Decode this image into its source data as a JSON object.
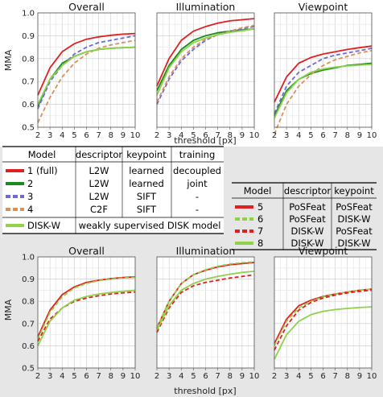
{
  "top_chart_group": {
    "ylabel": "MMA",
    "xlabel": "threshold [px]"
  },
  "bottom_chart_group": {
    "ylabel": "MMA",
    "xlabel": "threshold [px]"
  },
  "left_table": {
    "headers": [
      "Model",
      "descriptor",
      "keypoint",
      "training"
    ],
    "rows": [
      {
        "model": "1 (full)",
        "descriptor": "L2W",
        "keypoint": "learned",
        "training": "decoupled",
        "color": "#e02020",
        "dash": "solid"
      },
      {
        "model": "2",
        "descriptor": "L2W",
        "keypoint": "learned",
        "training": "joint",
        "color": "#1a8a1a",
        "dash": "solid"
      },
      {
        "model": "3",
        "descriptor": "L2W",
        "keypoint": "SIFT",
        "training": "-",
        "color": "#6a6ad8",
        "dash": "dashed"
      },
      {
        "model": "4",
        "descriptor": "C2F",
        "keypoint": "SIFT",
        "training": "-",
        "color": "#d9915a",
        "dash": "dashed"
      }
    ],
    "disk_row": {
      "model": "DISK-W",
      "description": "weakly supervised DISK model",
      "color": "#8fd24a",
      "dash": "solid"
    }
  },
  "right_table": {
    "headers": [
      "Model",
      "descriptor",
      "keypoint"
    ],
    "rows": [
      {
        "model": "5",
        "descriptor": "PoSFeat",
        "keypoint": "PoSFeat",
        "color": "#e02020",
        "dash": "solid"
      },
      {
        "model": "6",
        "descriptor": "PoSFeat",
        "keypoint": "DISK-W",
        "color": "#8fd24a",
        "dash": "dashed"
      },
      {
        "model": "7",
        "descriptor": "DISK-W",
        "keypoint": "PoSFeat",
        "color": "#e02020",
        "dash": "dashed"
      },
      {
        "model": "8",
        "descriptor": "DISK-W",
        "keypoint": "DISK-W",
        "color": "#8fd24a",
        "dash": "solid"
      }
    ]
  },
  "chart_data": [
    {
      "type": "line",
      "title": "Overall",
      "xlabel": "threshold [px]",
      "ylabel": "MMA",
      "x": [
        2,
        3,
        4,
        5,
        6,
        7,
        8,
        9,
        10
      ],
      "xlim": [
        2,
        10
      ],
      "ylim": [
        0.5,
        1.0
      ],
      "grid": true,
      "yticks": [
        "0.5",
        "0.6",
        "0.7",
        "0.8",
        "0.9",
        "1.0"
      ],
      "series": [
        {
          "name": "1 (full)",
          "color": "#e02020",
          "dash": "solid",
          "values": [
            0.64,
            0.76,
            0.83,
            0.865,
            0.885,
            0.895,
            0.902,
            0.907,
            0.91
          ]
        },
        {
          "name": "2",
          "color": "#1a8a1a",
          "dash": "solid",
          "values": [
            0.59,
            0.71,
            0.78,
            0.81,
            0.83,
            0.84,
            0.845,
            0.848,
            0.85
          ]
        },
        {
          "name": "3",
          "color": "#6a6ad8",
          "dash": "dashed",
          "values": [
            0.58,
            0.7,
            0.77,
            0.82,
            0.85,
            0.87,
            0.88,
            0.89,
            0.9
          ]
        },
        {
          "name": "4",
          "color": "#d9915a",
          "dash": "dashed",
          "values": [
            0.52,
            0.63,
            0.72,
            0.78,
            0.82,
            0.845,
            0.86,
            0.87,
            0.88
          ]
        },
        {
          "name": "DISK-W",
          "color": "#8fd24a",
          "dash": "solid",
          "values": [
            0.6,
            0.71,
            0.77,
            0.81,
            0.83,
            0.84,
            0.845,
            0.848,
            0.85
          ]
        }
      ]
    },
    {
      "type": "line",
      "title": "Illumination",
      "xlabel": "threshold [px]",
      "ylabel": "",
      "x": [
        2,
        3,
        4,
        5,
        6,
        7,
        8,
        9,
        10
      ],
      "xlim": [
        2,
        10
      ],
      "ylim": [
        0.5,
        1.0
      ],
      "grid": true,
      "yticks": [],
      "series": [
        {
          "name": "1 (full)",
          "color": "#e02020",
          "dash": "solid",
          "values": [
            0.68,
            0.8,
            0.88,
            0.92,
            0.94,
            0.955,
            0.965,
            0.97,
            0.975
          ]
        },
        {
          "name": "2",
          "color": "#1a8a1a",
          "dash": "solid",
          "values": [
            0.66,
            0.77,
            0.84,
            0.88,
            0.9,
            0.913,
            0.92,
            0.925,
            0.93
          ]
        },
        {
          "name": "3",
          "color": "#6a6ad8",
          "dash": "dashed",
          "values": [
            0.6,
            0.71,
            0.79,
            0.84,
            0.88,
            0.905,
            0.92,
            0.93,
            0.94
          ]
        },
        {
          "name": "4",
          "color": "#d9915a",
          "dash": "dashed",
          "values": [
            0.61,
            0.72,
            0.8,
            0.85,
            0.885,
            0.905,
            0.92,
            0.935,
            0.945
          ]
        },
        {
          "name": "DISK-W",
          "color": "#8fd24a",
          "dash": "solid",
          "values": [
            0.64,
            0.76,
            0.83,
            0.87,
            0.89,
            0.905,
            0.915,
            0.922,
            0.93
          ]
        }
      ]
    },
    {
      "type": "line",
      "title": "Viewpoint",
      "xlabel": "threshold [px]",
      "ylabel": "",
      "x": [
        2,
        3,
        4,
        5,
        6,
        7,
        8,
        9,
        10
      ],
      "xlim": [
        2,
        10
      ],
      "ylim": [
        0.5,
        1.0
      ],
      "grid": true,
      "yticks": [],
      "series": [
        {
          "name": "1 (full)",
          "color": "#e02020",
          "dash": "solid",
          "values": [
            0.61,
            0.72,
            0.78,
            0.805,
            0.82,
            0.83,
            0.84,
            0.848,
            0.855
          ]
        },
        {
          "name": "2",
          "color": "#1a8a1a",
          "dash": "solid",
          "values": [
            0.55,
            0.66,
            0.71,
            0.735,
            0.75,
            0.76,
            0.77,
            0.775,
            0.78
          ]
        },
        {
          "name": "3",
          "color": "#6a6ad8",
          "dash": "dashed",
          "values": [
            0.56,
            0.68,
            0.74,
            0.77,
            0.8,
            0.815,
            0.825,
            0.835,
            0.845
          ]
        },
        {
          "name": "4",
          "color": "#d9915a",
          "dash": "dashed",
          "values": [
            0.47,
            0.6,
            0.68,
            0.73,
            0.77,
            0.795,
            0.81,
            0.825,
            0.835
          ]
        },
        {
          "name": "DISK-W",
          "color": "#8fd24a",
          "dash": "solid",
          "values": [
            0.54,
            0.65,
            0.71,
            0.74,
            0.755,
            0.763,
            0.768,
            0.772,
            0.775
          ]
        }
      ]
    },
    {
      "type": "line",
      "title": "Overall",
      "xlabel": "threshold [px]",
      "ylabel": "MMA",
      "x": [
        2,
        3,
        4,
        5,
        6,
        7,
        8,
        9,
        10
      ],
      "xlim": [
        2,
        10
      ],
      "ylim": [
        0.5,
        1.0
      ],
      "grid": true,
      "yticks": [
        "0.5",
        "0.6",
        "0.7",
        "0.8",
        "0.9",
        "1.0"
      ],
      "series": [
        {
          "name": "5",
          "color": "#e02020",
          "dash": "solid",
          "values": [
            0.64,
            0.76,
            0.83,
            0.865,
            0.885,
            0.895,
            0.902,
            0.907,
            0.91
          ]
        },
        {
          "name": "6",
          "color": "#8fd24a",
          "dash": "dashed",
          "values": [
            0.63,
            0.75,
            0.82,
            0.86,
            0.88,
            0.893,
            0.9,
            0.905,
            0.908
          ]
        },
        {
          "name": "7",
          "color": "#e02020",
          "dash": "dashed",
          "values": [
            0.62,
            0.72,
            0.77,
            0.8,
            0.815,
            0.825,
            0.833,
            0.838,
            0.842
          ]
        },
        {
          "name": "8",
          "color": "#8fd24a",
          "dash": "solid",
          "values": [
            0.6,
            0.71,
            0.77,
            0.805,
            0.822,
            0.833,
            0.84,
            0.845,
            0.85
          ]
        }
      ]
    },
    {
      "type": "line",
      "title": "Illumination",
      "xlabel": "threshold [px]",
      "ylabel": "",
      "x": [
        2,
        3,
        4,
        5,
        6,
        7,
        8,
        9,
        10
      ],
      "xlim": [
        2,
        10
      ],
      "ylim": [
        0.5,
        1.0
      ],
      "grid": true,
      "yticks": [],
      "series": [
        {
          "name": "5",
          "color": "#e02020",
          "dash": "solid",
          "values": [
            0.68,
            0.8,
            0.88,
            0.92,
            0.94,
            0.955,
            0.965,
            0.97,
            0.975
          ]
        },
        {
          "name": "6",
          "color": "#8fd24a",
          "dash": "dashed",
          "values": [
            0.68,
            0.8,
            0.88,
            0.92,
            0.942,
            0.958,
            0.968,
            0.974,
            0.978
          ]
        },
        {
          "name": "7",
          "color": "#e02020",
          "dash": "dashed",
          "values": [
            0.66,
            0.77,
            0.84,
            0.87,
            0.885,
            0.895,
            0.905,
            0.912,
            0.92
          ]
        },
        {
          "name": "8",
          "color": "#8fd24a",
          "dash": "solid",
          "values": [
            0.67,
            0.78,
            0.85,
            0.88,
            0.9,
            0.912,
            0.922,
            0.93,
            0.935
          ]
        }
      ]
    },
    {
      "type": "line",
      "title": "Viewpoint",
      "xlabel": "threshold [px]",
      "ylabel": "",
      "x": [
        2,
        3,
        4,
        5,
        6,
        7,
        8,
        9,
        10
      ],
      "xlim": [
        2,
        10
      ],
      "ylim": [
        0.5,
        1.0
      ],
      "grid": true,
      "yticks": [],
      "series": [
        {
          "name": "5",
          "color": "#e02020",
          "dash": "solid",
          "values": [
            0.61,
            0.72,
            0.78,
            0.805,
            0.822,
            0.833,
            0.842,
            0.85,
            0.855
          ]
        },
        {
          "name": "6",
          "color": "#8fd24a",
          "dash": "dashed",
          "values": [
            0.6,
            0.71,
            0.77,
            0.8,
            0.82,
            0.832,
            0.842,
            0.85,
            0.855
          ]
        },
        {
          "name": "7",
          "color": "#e02020",
          "dash": "dashed",
          "values": [
            0.58,
            0.69,
            0.76,
            0.795,
            0.815,
            0.828,
            0.838,
            0.845,
            0.85
          ]
        },
        {
          "name": "8",
          "color": "#8fd24a",
          "dash": "solid",
          "values": [
            0.54,
            0.65,
            0.71,
            0.74,
            0.755,
            0.763,
            0.768,
            0.772,
            0.775
          ]
        }
      ]
    }
  ]
}
